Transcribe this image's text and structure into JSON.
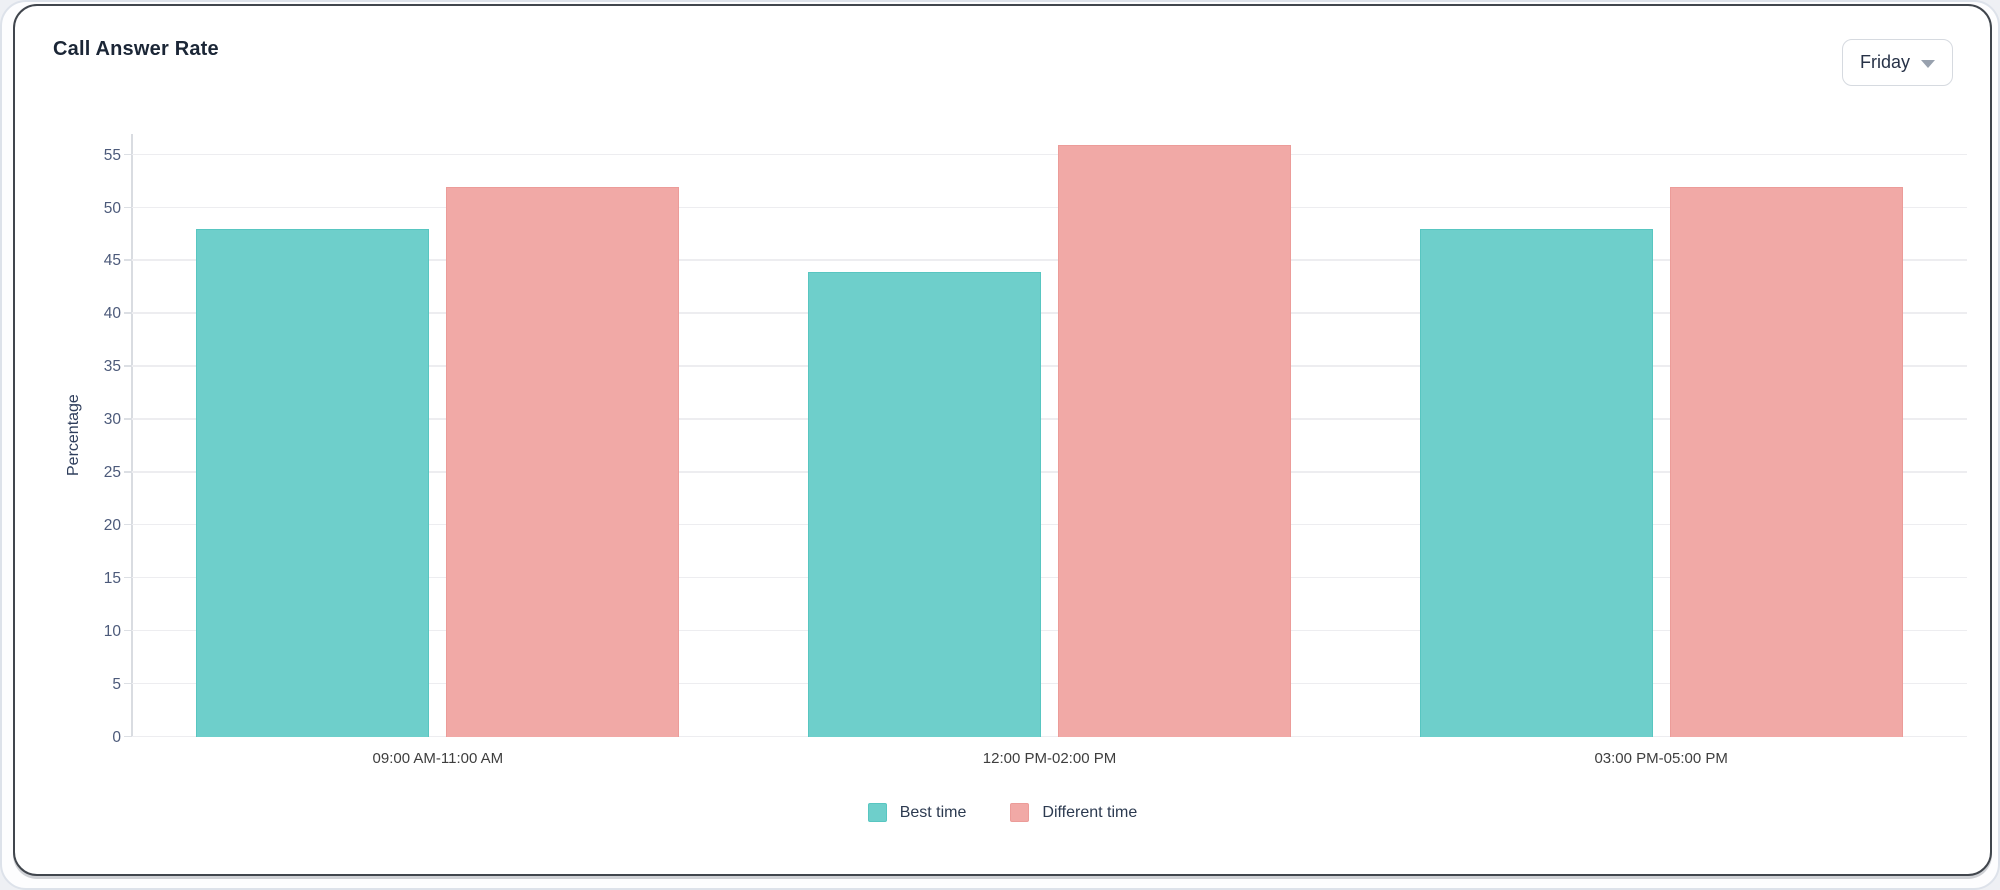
{
  "card": {
    "title": "Call Answer Rate",
    "dropdown": {
      "value": "Friday",
      "caret_icon": "chevron-down"
    }
  },
  "colors": {
    "best_time_fill": "#6ecfcb",
    "best_time_border": "#58c6c1",
    "different_time_fill": "#f1a9a6",
    "different_time_border": "#ec9c99",
    "gridline": "#ededf0",
    "axis_line": "#d9dce1",
    "y_tick_text": "#4c5a7a",
    "axis_title_text": "#2f3e5c",
    "category_text": "#3e3e3e",
    "legend_text": "#2c3a50",
    "title_text": "#1b2636"
  },
  "chart_data": {
    "type": "bar",
    "title": "Call Answer Rate",
    "categories": [
      "09:00 AM-11:00 AM",
      "12:00 PM-02:00 PM",
      "03:00 PM-05:00 PM"
    ],
    "series": [
      {
        "name": "Best time",
        "values": [
          48,
          44,
          48
        ],
        "fill": "#6ecfcb",
        "border": "#58c6c1"
      },
      {
        "name": "Different time",
        "values": [
          52,
          56,
          52
        ],
        "fill": "#f1a9a6",
        "border": "#ec9c99"
      }
    ],
    "xlabel": "",
    "ylabel": "Percentage",
    "ylim": [
      0,
      57
    ],
    "yticks": [
      0,
      5,
      10,
      15,
      20,
      25,
      30,
      35,
      40,
      45,
      50,
      55
    ],
    "grid": true,
    "legend_position": "bottom"
  }
}
